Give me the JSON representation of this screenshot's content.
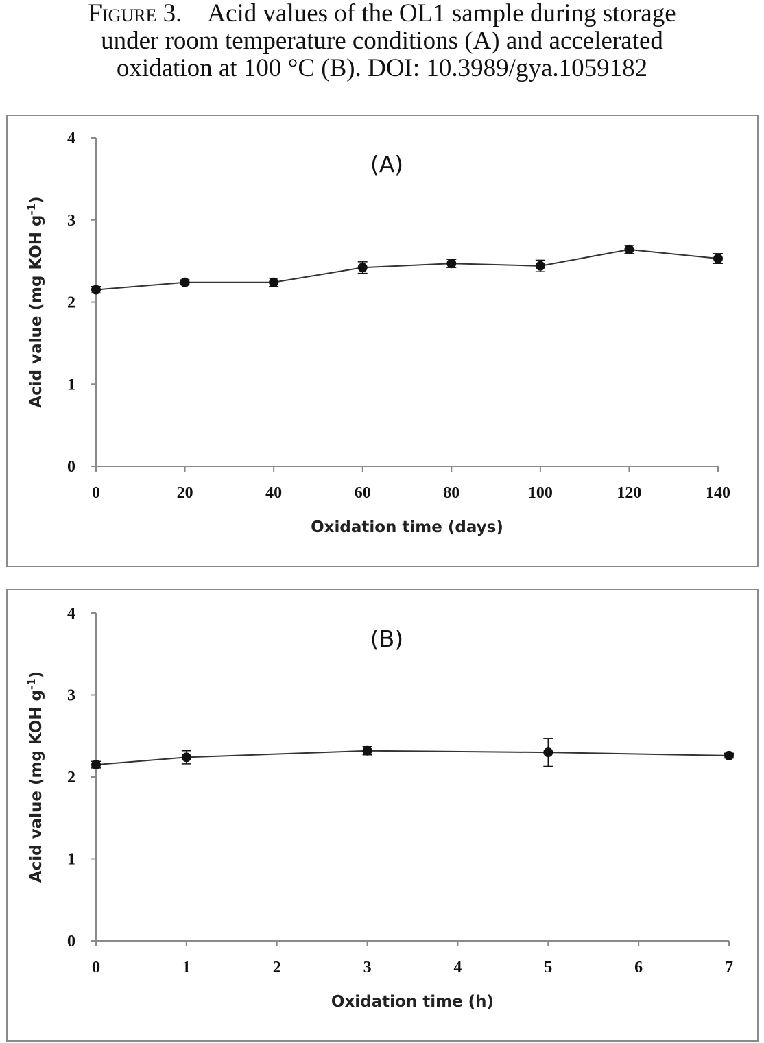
{
  "caption": {
    "lead": "Figure 3.",
    "line1": "Acid values of the OL1 sample during storage",
    "line2": "under room temperature conditions (A) and accelerated",
    "line3": "oxidation at 100 °C (B). DOI: 10.3989/gya.1059182"
  },
  "colors": {
    "line": "#333333",
    "marker": "#111111",
    "frame": "#8a8a8a"
  },
  "chart_data": [
    {
      "type": "line",
      "panel_label": "(A)",
      "xlabel": "Oxidation time (days)",
      "ylabel_main": "Acid value (mg KOH g",
      "ylabel_sup": "-1",
      "ylabel_end": ")",
      "xlim": [
        0,
        140
      ],
      "ylim": [
        0,
        4
      ],
      "x_ticks": [
        "0",
        "20",
        "40",
        "60",
        "80",
        "100",
        "120",
        "140"
      ],
      "y_ticks": [
        "0",
        "1",
        "2",
        "3",
        "4"
      ],
      "grid": false,
      "series": [
        {
          "x": [
            0,
            20,
            40,
            60,
            80,
            100,
            120,
            140
          ],
          "y": [
            2.15,
            2.24,
            2.24,
            2.42,
            2.47,
            2.44,
            2.64,
            2.53
          ],
          "error": [
            0.04,
            0.03,
            0.05,
            0.07,
            0.05,
            0.07,
            0.05,
            0.06
          ]
        }
      ]
    },
    {
      "type": "line",
      "panel_label": "(B)",
      "xlabel": "Oxidation time (h)",
      "ylabel_main": "Acid value (mg KOH g",
      "ylabel_sup": "-1",
      "ylabel_end": ")",
      "xlim": [
        0,
        7
      ],
      "ylim": [
        0,
        4
      ],
      "x_ticks": [
        "0",
        "1",
        "2",
        "3",
        "4",
        "5",
        "6",
        "7"
      ],
      "y_ticks": [
        "0",
        "1",
        "2",
        "3",
        "4"
      ],
      "grid": false,
      "series": [
        {
          "x": [
            0,
            1,
            3,
            5,
            7
          ],
          "y": [
            2.15,
            2.24,
            2.32,
            2.3,
            2.26
          ],
          "error": [
            0.04,
            0.08,
            0.05,
            0.17,
            0.03
          ]
        }
      ]
    }
  ]
}
